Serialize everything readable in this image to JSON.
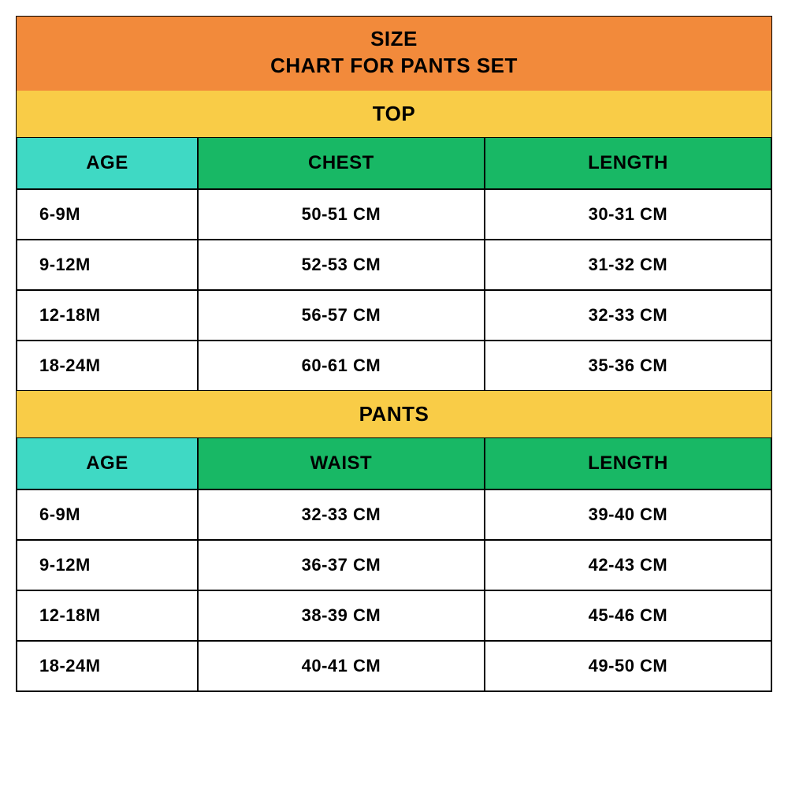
{
  "colors": {
    "orange": "#f28a3b",
    "yellow": "#f9cc47",
    "green": "#18b865",
    "teal": "#3fd9c4",
    "black": "#000000",
    "white": "#ffffff"
  },
  "title": {
    "line1": "SIZE",
    "line2": "CHART FOR PANTS SET"
  },
  "sections": [
    {
      "name": "TOP",
      "headers": {
        "age": "AGE",
        "mid": "CHEST",
        "last": "LENGTH"
      },
      "rows": [
        {
          "age": "6-9M",
          "mid": "50-51 CM",
          "last": "30-31 CM"
        },
        {
          "age": "9-12M",
          "mid": "52-53 CM",
          "last": "31-32 CM"
        },
        {
          "age": "12-18M",
          "mid": "56-57 CM",
          "last": "32-33 CM"
        },
        {
          "age": "18-24M",
          "mid": "60-61 CM",
          "last": "35-36 CM"
        }
      ]
    },
    {
      "name": "PANTS",
      "headers": {
        "age": "AGE",
        "mid": "WAIST",
        "last": "LENGTH"
      },
      "rows": [
        {
          "age": "6-9M",
          "mid": "32-33 CM",
          "last": "39-40 CM"
        },
        {
          "age": "9-12M",
          "mid": "36-37 CM",
          "last": "42-43 CM"
        },
        {
          "age": "12-18M",
          "mid": "38-39 CM",
          "last": "45-46 CM"
        },
        {
          "age": "18-24M",
          "mid": "40-41 CM",
          "last": "49-50 CM"
        }
      ]
    }
  ]
}
